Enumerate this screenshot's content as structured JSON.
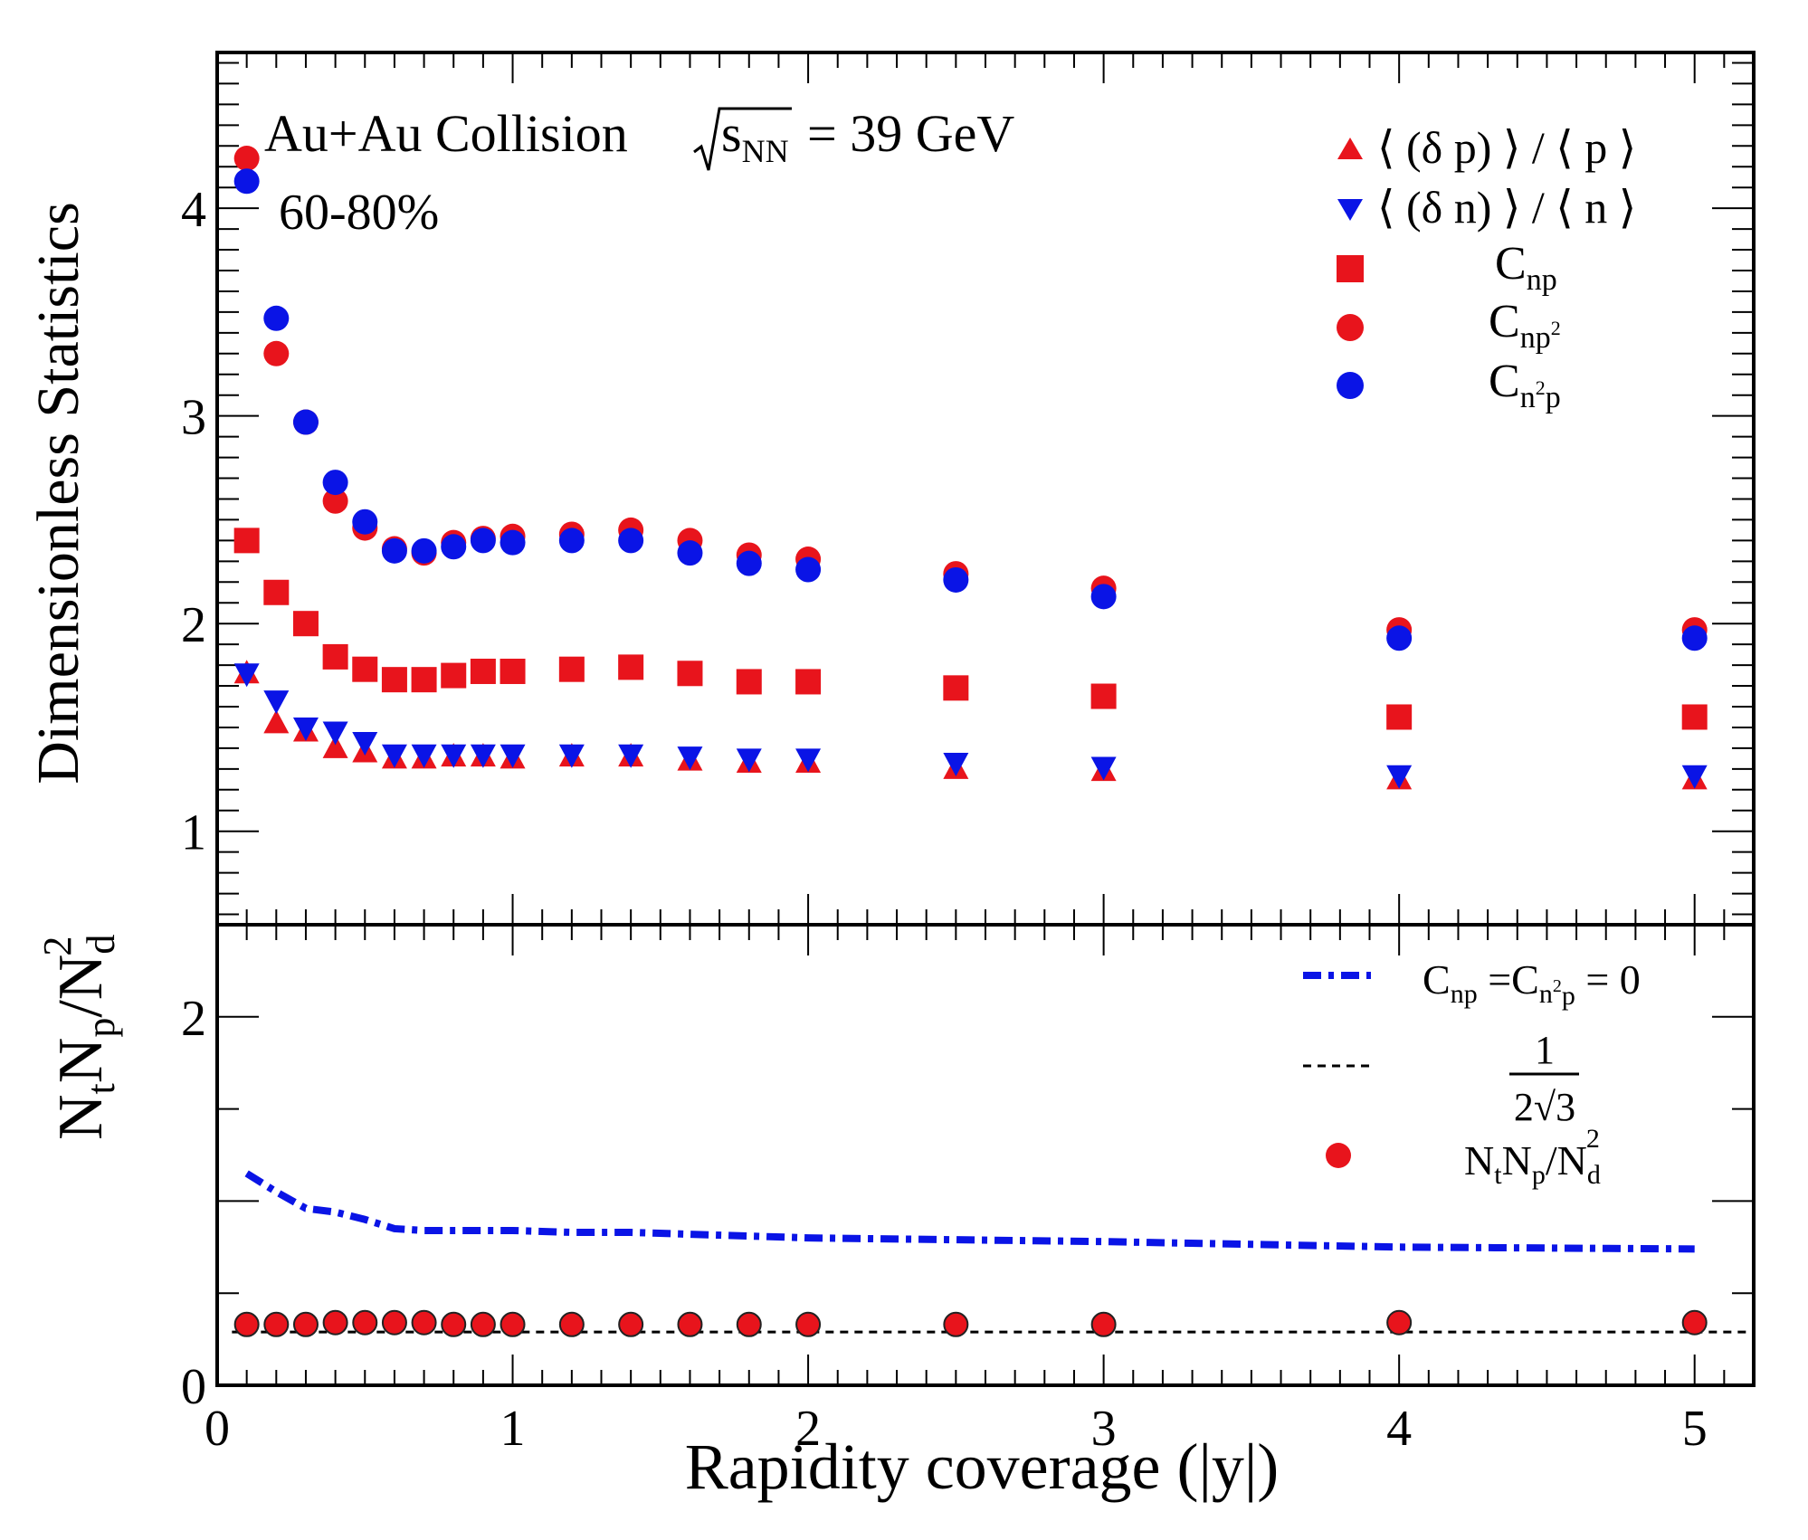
{
  "chart_data": [
    {
      "type": "scatter",
      "panel": "top",
      "ylabel": "Dimensionless Statistics",
      "ylim": [
        0.55,
        4.75
      ],
      "xlim": [
        0,
        5.2
      ],
      "yticks": [
        1,
        2,
        3,
        4
      ],
      "annotation": {
        "system": "Au+Au Collision",
        "energy_label": "s",
        "energy_sub": "NN",
        "energy_value": "= 39 GeV",
        "centrality": "60-80%"
      },
      "legend_position": "top-right",
      "series": [
        {
          "name": "⟨ (δ p) ⟩ / ⟨ p ⟩",
          "marker": "triangle-up",
          "color": "#e8141c",
          "x": [
            0.1,
            0.2,
            0.3,
            0.4,
            0.5,
            0.6,
            0.7,
            0.8,
            0.9,
            1.0,
            1.2,
            1.4,
            1.6,
            1.8,
            2.0,
            2.5,
            3.0,
            4.0,
            5.0
          ],
          "y": [
            1.76,
            1.52,
            1.48,
            1.4,
            1.38,
            1.35,
            1.35,
            1.36,
            1.36,
            1.35,
            1.36,
            1.36,
            1.34,
            1.33,
            1.33,
            1.3,
            1.29,
            1.25,
            1.25
          ]
        },
        {
          "name": "⟨ (δ n) ⟩ / ⟨ n ⟩",
          "marker": "triangle-down",
          "color": "#0a14e6",
          "x": [
            0.1,
            0.2,
            0.3,
            0.4,
            0.5,
            0.6,
            0.7,
            0.8,
            0.9,
            1.0,
            1.2,
            1.4,
            1.6,
            1.8,
            2.0,
            2.5,
            3.0,
            4.0,
            5.0
          ],
          "y": [
            1.76,
            1.63,
            1.5,
            1.48,
            1.43,
            1.37,
            1.37,
            1.37,
            1.37,
            1.37,
            1.37,
            1.37,
            1.36,
            1.35,
            1.35,
            1.33,
            1.31,
            1.27,
            1.27
          ]
        },
        {
          "name": "C",
          "name_sub": "np",
          "marker": "square",
          "color": "#e8141c",
          "x": [
            0.1,
            0.2,
            0.3,
            0.4,
            0.5,
            0.6,
            0.7,
            0.8,
            0.9,
            1.0,
            1.2,
            1.4,
            1.6,
            1.8,
            2.0,
            2.5,
            3.0,
            4.0,
            5.0
          ],
          "y": [
            2.4,
            2.15,
            2.0,
            1.84,
            1.78,
            1.73,
            1.73,
            1.75,
            1.77,
            1.77,
            1.78,
            1.79,
            1.76,
            1.72,
            1.72,
            1.69,
            1.65,
            1.55,
            1.55
          ]
        },
        {
          "name": "C",
          "name_sub": "np",
          "name_sup": "2",
          "marker": "circle",
          "color": "#e8141c",
          "x": [
            0.1,
            0.2,
            0.3,
            0.4,
            0.5,
            0.6,
            0.7,
            0.8,
            0.9,
            1.0,
            1.2,
            1.4,
            1.6,
            1.8,
            2.0,
            2.5,
            3.0,
            4.0,
            5.0
          ],
          "y": [
            4.24,
            3.3,
            2.97,
            2.59,
            2.46,
            2.36,
            2.34,
            2.39,
            2.41,
            2.42,
            2.43,
            2.45,
            2.4,
            2.33,
            2.31,
            2.24,
            2.17,
            1.97,
            1.97
          ]
        },
        {
          "name": "C",
          "name_sub": "n",
          "name_sup": "2",
          "name_sub2": "p",
          "marker": "circle",
          "color": "#0a14e6",
          "x": [
            0.1,
            0.2,
            0.3,
            0.4,
            0.5,
            0.6,
            0.7,
            0.8,
            0.9,
            1.0,
            1.2,
            1.4,
            1.6,
            1.8,
            2.0,
            2.5,
            3.0,
            4.0,
            5.0
          ],
          "y": [
            4.13,
            3.47,
            2.97,
            2.68,
            2.49,
            2.35,
            2.35,
            2.37,
            2.4,
            2.39,
            2.4,
            2.4,
            2.34,
            2.29,
            2.26,
            2.21,
            2.13,
            1.93,
            1.93
          ]
        }
      ]
    },
    {
      "type": "line",
      "panel": "bottom",
      "xlabel": "Rapidity coverage (|y|)",
      "ylabel": "N",
      "ylabel_parts": [
        "N",
        "t",
        "N",
        "p",
        "/N",
        "d",
        "2"
      ],
      "ylim": [
        0,
        2.5
      ],
      "xlim": [
        0,
        5.2
      ],
      "xticks": [
        0,
        1,
        2,
        3,
        4,
        5
      ],
      "yticks": [
        0,
        2
      ],
      "legend_position": "top-right",
      "series": [
        {
          "name": "C",
          "legend_text": [
            "C",
            "np",
            " =C",
            "n",
            "2",
            "p",
            " = 0"
          ],
          "style": "dash-dot",
          "color": "#0a14e6",
          "x": [
            0.1,
            0.2,
            0.3,
            0.4,
            0.5,
            0.6,
            0.7,
            0.8,
            0.9,
            1.0,
            1.2,
            1.4,
            1.6,
            1.8,
            2.0,
            2.5,
            3.0,
            4.0,
            5.0
          ],
          "y": [
            1.15,
            1.05,
            0.96,
            0.94,
            0.9,
            0.85,
            0.84,
            0.84,
            0.84,
            0.84,
            0.83,
            0.83,
            0.82,
            0.81,
            0.8,
            0.79,
            0.78,
            0.75,
            0.74
          ]
        },
        {
          "name": "1/(2√3)",
          "legend_num": "1",
          "legend_den": "2√3",
          "style": "dashed",
          "color": "#000000",
          "x": [
            0.05,
            5.2
          ],
          "y": [
            0.289,
            0.289
          ]
        },
        {
          "name": "N",
          "legend_text": [
            "N",
            "t",
            "N",
            "p",
            "/N",
            "d",
            "2"
          ],
          "marker": "circle",
          "color": "#e8141c",
          "x": [
            0.1,
            0.2,
            0.3,
            0.4,
            0.5,
            0.6,
            0.7,
            0.8,
            0.9,
            1.0,
            1.2,
            1.4,
            1.6,
            1.8,
            2.0,
            2.5,
            3.0,
            4.0,
            5.0
          ],
          "y": [
            0.33,
            0.33,
            0.33,
            0.34,
            0.34,
            0.34,
            0.34,
            0.33,
            0.33,
            0.33,
            0.33,
            0.33,
            0.33,
            0.33,
            0.33,
            0.33,
            0.33,
            0.34,
            0.34
          ]
        }
      ]
    }
  ]
}
